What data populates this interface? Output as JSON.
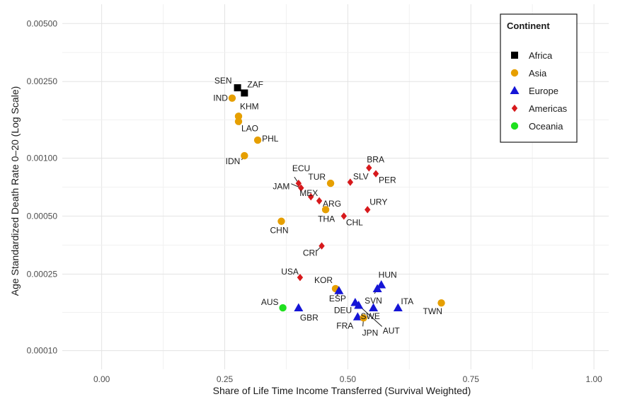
{
  "chart_data": {
    "type": "scatter",
    "xlabel": "Share of Life Time Income Transferred (Survival Weighted)",
    "ylabel": "Age Standardized Death Rate 0–20 (Log Scale)",
    "xlim": [
      -0.08,
      1.03
    ],
    "ylim": [
      8e-05,
      0.0063
    ],
    "y_scale": "log",
    "grid": true,
    "x_ticks": [
      {
        "value": 0.0,
        "label": "0.00"
      },
      {
        "value": 0.25,
        "label": "0.25"
      },
      {
        "value": 0.5,
        "label": "0.50"
      },
      {
        "value": 0.75,
        "label": "0.75"
      },
      {
        "value": 1.0,
        "label": "1.00"
      }
    ],
    "y_ticks": [
      {
        "value": 0.005,
        "label": "0.00500"
      },
      {
        "value": 0.0025,
        "label": "0.00250"
      },
      {
        "value": 0.001,
        "label": "0.00100"
      },
      {
        "value": 0.0005,
        "label": "0.00050"
      },
      {
        "value": 0.00025,
        "label": "0.00025"
      },
      {
        "value": 0.0001,
        "label": "0.00010"
      }
    ],
    "legend": {
      "title": "Continent",
      "position": "top-right",
      "entries": [
        {
          "name": "Africa",
          "color": "#000000",
          "shape": "square"
        },
        {
          "name": "Asia",
          "color": "#E69F00",
          "shape": "circle"
        },
        {
          "name": "Europe",
          "color": "#1515D6",
          "shape": "triangle"
        },
        {
          "name": "Americas",
          "color": "#D7191C",
          "shape": "diamond"
        },
        {
          "name": "Oceania",
          "color": "#1FE01F",
          "shape": "circle"
        }
      ]
    },
    "points": [
      {
        "label": "SEN",
        "continent": "Africa",
        "x": 0.276,
        "y": 0.00232
      },
      {
        "label": "ZAF",
        "continent": "Africa",
        "x": 0.29,
        "y": 0.00218
      },
      {
        "label": "IND",
        "continent": "Asia",
        "x": 0.265,
        "y": 0.00205
      },
      {
        "label": "KHM",
        "continent": "Asia",
        "x": 0.278,
        "y": 0.00165
      },
      {
        "label": "LAO",
        "continent": "Asia",
        "x": 0.278,
        "y": 0.00155
      },
      {
        "label": "PHL",
        "continent": "Asia",
        "x": 0.317,
        "y": 0.00124
      },
      {
        "label": "IDN",
        "continent": "Asia",
        "x": 0.29,
        "y": 0.00103
      },
      {
        "label": "BRA",
        "continent": "Americas",
        "x": 0.543,
        "y": 0.00089
      },
      {
        "label": "PER",
        "continent": "Americas",
        "x": 0.557,
        "y": 0.00083
      },
      {
        "label": "SLV",
        "continent": "Americas",
        "x": 0.505,
        "y": 0.00075
      },
      {
        "label": "TUR",
        "continent": "Asia",
        "x": 0.465,
        "y": 0.00074
      },
      {
        "label": "ECU",
        "continent": "Americas",
        "x": 0.4,
        "y": 0.00074
      },
      {
        "label": "JAM",
        "continent": "Americas",
        "x": 0.405,
        "y": 0.0007
      },
      {
        "label": "MEX",
        "continent": "Americas",
        "x": 0.425,
        "y": 0.00063
      },
      {
        "label": "ARG",
        "continent": "Americas",
        "x": 0.442,
        "y": 0.0006
      },
      {
        "label": "URY",
        "continent": "Americas",
        "x": 0.54,
        "y": 0.00054
      },
      {
        "label": "THA",
        "continent": "Asia",
        "x": 0.455,
        "y": 0.00054
      },
      {
        "label": "CHL",
        "continent": "Americas",
        "x": 0.492,
        "y": 0.0005
      },
      {
        "label": "CHN",
        "continent": "Asia",
        "x": 0.365,
        "y": 0.00047
      },
      {
        "label": "CRI",
        "continent": "Americas",
        "x": 0.447,
        "y": 0.00035
      },
      {
        "label": "USA",
        "continent": "Americas",
        "x": 0.403,
        "y": 0.00024
      },
      {
        "label": "HUN",
        "continent": "Europe",
        "x": 0.568,
        "y": 0.00022
      },
      {
        "label": "SVN",
        "continent": "Europe",
        "x": 0.56,
        "y": 0.00021
      },
      {
        "label": "KOR",
        "continent": "Asia",
        "x": 0.475,
        "y": 0.00021
      },
      {
        "label": "ESP",
        "continent": "Europe",
        "x": 0.482,
        "y": 0.000205
      },
      {
        "label": "DEU",
        "continent": "Europe",
        "x": 0.515,
        "y": 0.000178
      },
      {
        "label": "ITA",
        "continent": "Europe",
        "x": 0.602,
        "y": 0.000167
      },
      {
        "label": "TWN",
        "continent": "Asia",
        "x": 0.69,
        "y": 0.000177
      },
      {
        "label": "SWE",
        "continent": "Europe",
        "x": 0.552,
        "y": 0.000167
      },
      {
        "label": "AUT",
        "continent": "Europe",
        "x": 0.522,
        "y": 0.000172
      },
      {
        "label": "AUS",
        "continent": "Oceania",
        "x": 0.368,
        "y": 0.000167
      },
      {
        "label": "GBR",
        "continent": "Europe",
        "x": 0.4,
        "y": 0.000167
      },
      {
        "label": "FRA",
        "continent": "Europe",
        "x": 0.52,
        "y": 0.00015
      },
      {
        "label": "JPN",
        "continent": "Asia",
        "x": 0.532,
        "y": 0.000148
      }
    ]
  }
}
